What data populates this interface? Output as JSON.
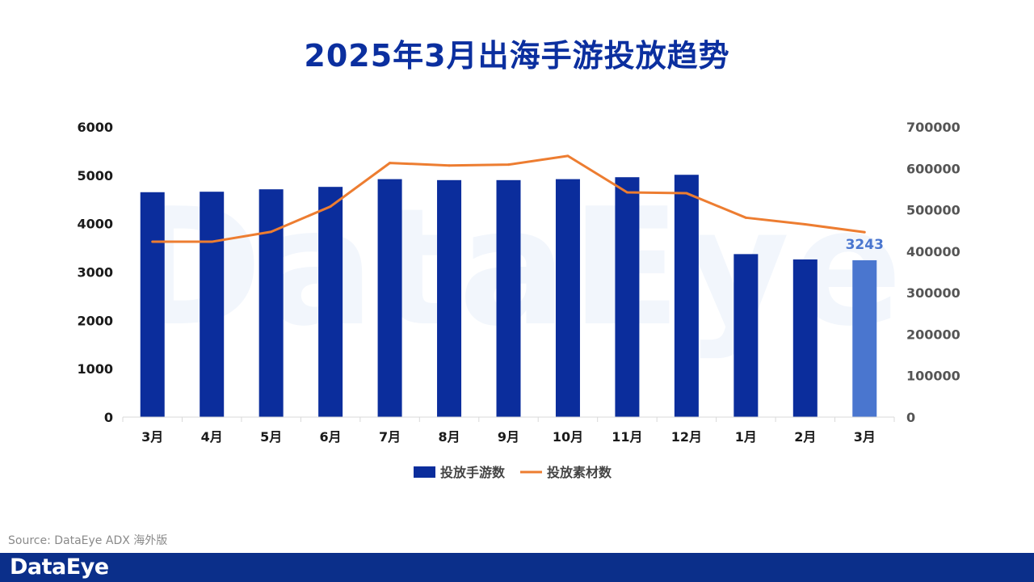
{
  "chart_data": {
    "type": "bar",
    "title": "2025年3月出海手游投放趋势",
    "categories": [
      "3月",
      "4月",
      "5月",
      "6月",
      "7月",
      "8月",
      "9月",
      "10月",
      "11月",
      "12月",
      "1月",
      "2月",
      "3月"
    ],
    "series": [
      {
        "name": "投放手游数",
        "type": "bar",
        "axis": "left",
        "values": [
          4650,
          4660,
          4710,
          4760,
          4920,
          4900,
          4900,
          4920,
          4960,
          5010,
          3370,
          3260,
          3243
        ],
        "colors": {
          "default": "#0B2D9C",
          "highlight": "#4A76CF"
        },
        "highlight_index": 12
      },
      {
        "name": "投放素材数",
        "type": "line",
        "axis": "right",
        "values": [
          423000,
          423000,
          447000,
          508000,
          613000,
          607000,
          609000,
          630000,
          542000,
          540000,
          481000,
          465000,
          446000
        ],
        "color": "#ED7D31"
      }
    ],
    "data_labels": [
      {
        "series": 0,
        "index": 12,
        "text": "3243",
        "color": "#4A76CF"
      }
    ],
    "left_axis": {
      "ylim": [
        0,
        6000
      ],
      "ticks": [
        "0",
        "1000",
        "2000",
        "3000",
        "4000",
        "5000",
        "6000"
      ]
    },
    "right_axis": {
      "ylim": [
        0,
        700000
      ],
      "ticks": [
        "0",
        "100000",
        "200000",
        "300000",
        "400000",
        "500000",
        "600000",
        "700000"
      ]
    },
    "legend": {
      "position": "bottom",
      "entries": [
        "投放手游数",
        "投放素材数"
      ]
    },
    "grid": false
  },
  "watermark": "DataEye",
  "source": "Source: DataEye ADX 海外版",
  "footer": {
    "logo": "DataEye"
  }
}
